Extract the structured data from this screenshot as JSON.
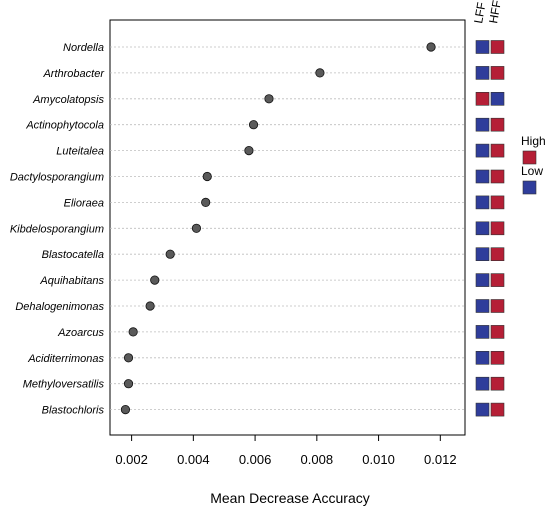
{
  "chart_data": {
    "type": "scatter",
    "subtype": "dot-plot",
    "categories": [
      "Nordella",
      "Arthrobacter",
      "Amycolatopsis",
      "Actinophytocola",
      "Luteitalea",
      "Dactylosporangium",
      "Elioraea",
      "Kibdelosporangium",
      "Blastocatella",
      "Aquihabitans",
      "Dehalogenimonas",
      "Azoarcus",
      "Aciditerrimonas",
      "Methyloversatilis",
      "Blastochloris"
    ],
    "values": [
      0.0117,
      0.0081,
      0.00645,
      0.00595,
      0.0058,
      0.00445,
      0.0044,
      0.0041,
      0.00325,
      0.00275,
      0.0026,
      0.00205,
      0.0019,
      0.0019,
      0.0018
    ],
    "xlabel": "Mean Decrease Accuracy",
    "xticks": [
      "0.002",
      "0.004",
      "0.006",
      "0.008",
      "0.010",
      "0.012"
    ],
    "xtick_values": [
      0.002,
      0.004,
      0.006,
      0.008,
      0.01,
      0.012
    ],
    "xlim": [
      0.0013,
      0.0128
    ],
    "grid": "horizontal dotted",
    "point_color": "#5a5a5a",
    "abundance_columns": [
      "LFF",
      "HFF"
    ],
    "abundance": [
      [
        "Low",
        "High"
      ],
      [
        "Low",
        "High"
      ],
      [
        "High",
        "Low"
      ],
      [
        "Low",
        "High"
      ],
      [
        "Low",
        "High"
      ],
      [
        "Low",
        "High"
      ],
      [
        "Low",
        "High"
      ],
      [
        "Low",
        "High"
      ],
      [
        "Low",
        "High"
      ],
      [
        "Low",
        "High"
      ],
      [
        "Low",
        "High"
      ],
      [
        "Low",
        "High"
      ],
      [
        "Low",
        "High"
      ],
      [
        "Low",
        "High"
      ],
      [
        "Low",
        "High"
      ]
    ],
    "legend": {
      "placement": "right",
      "items": [
        {
          "label": "High",
          "color": "#b51f36"
        },
        {
          "label": "Low",
          "color": "#2f3d9b"
        }
      ]
    }
  }
}
